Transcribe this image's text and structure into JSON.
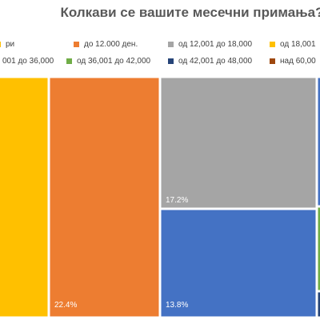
{
  "colors": {
    "background": "#ffffff",
    "title": "#595959",
    "legend_text": "#404040",
    "tile_border": "#ffffff"
  },
  "chart_data": {
    "type": "treemap",
    "title": "Колкави се вашите месечни примања?",
    "legend_position": "top",
    "series": [
      {
        "name": "ри",
        "color": "#ffc000",
        "value": null,
        "label": ""
      },
      {
        "name": "до 12.000 ден.",
        "color": "#ed7d31",
        "value": 22.4,
        "label": "22.4%"
      },
      {
        "name": "од 12,001 до 18,000",
        "color": "#a5a5a5",
        "value": 17.2,
        "label": "17.2%"
      },
      {
        "name": "од 18,001",
        "color": "#ffc000",
        "value": null,
        "label": ""
      },
      {
        "name": "001 до 36,000",
        "color": "#4472c4",
        "value": 13.8,
        "label": "13.8%"
      },
      {
        "name": "од 36,001 до 42,000",
        "color": "#70ad47",
        "value": null,
        "label": ""
      },
      {
        "name": "од 42,001 до 48,000",
        "color": "#264478",
        "value": null,
        "label": ""
      },
      {
        "name": "над 60,00",
        "color": "#9e480e",
        "value": null,
        "label": ""
      }
    ]
  }
}
